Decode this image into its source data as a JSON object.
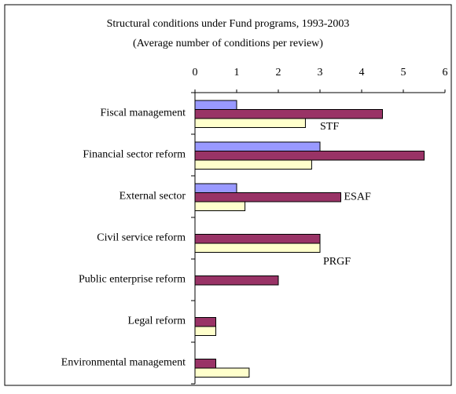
{
  "chart_data": {
    "type": "hbar",
    "title": "Structural conditions under Fund programs, 1993-2003",
    "subtitle": "(Average number of conditions per review)",
    "categories": [
      "Fiscal management",
      "Financial sector reform",
      "External sector",
      "Civil service reform",
      "Public enterprise reform",
      "Legal reform",
      "Environmental management"
    ],
    "series": [
      {
        "name": "STF",
        "color": "#9999ff",
        "values": [
          1.0,
          3.0,
          1.0,
          null,
          null,
          null,
          null
        ]
      },
      {
        "name": "ESAF",
        "color": "#993366",
        "values": [
          4.5,
          5.5,
          3.5,
          3.0,
          2.0,
          0.5,
          0.5
        ]
      },
      {
        "name": "PRGF",
        "color": "#ffffcc",
        "values": [
          2.65,
          2.8,
          1.2,
          3.0,
          null,
          0.5,
          1.3
        ]
      }
    ],
    "xlim": [
      0,
      6
    ],
    "xticks": [
      0,
      1,
      2,
      3,
      4,
      5,
      6
    ]
  }
}
